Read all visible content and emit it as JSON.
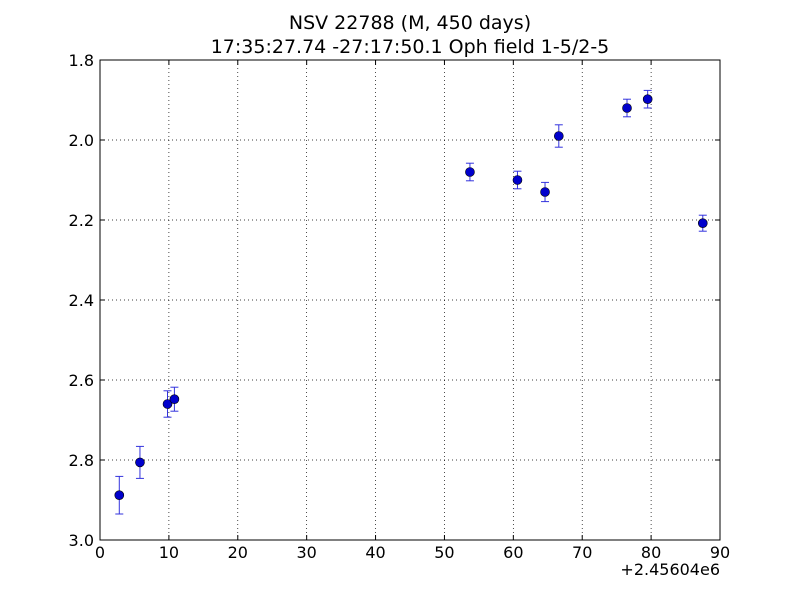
{
  "chart_data": {
    "type": "scatter",
    "title": "NSV 22788 (M, 450 days)",
    "subtitle": "17:35:27.74 -27:17:50.1 Oph field 1-5/2-5",
    "xlabel": "",
    "ylabel": "",
    "x_offset_label": "+2.45604e6",
    "xlim": [
      0,
      90
    ],
    "ylim": [
      3.0,
      1.8
    ],
    "y_inverted": true,
    "grid": true,
    "x_ticks": [
      "0",
      "10",
      "20",
      "30",
      "40",
      "50",
      "60",
      "70",
      "80",
      "90"
    ],
    "y_ticks": [
      "1.8",
      "2.0",
      "2.2",
      "2.4",
      "2.6",
      "2.8",
      "3.0"
    ],
    "marker_color": "#0000cc",
    "errorbar_color": "#3333dd",
    "points": [
      {
        "x": 2.8,
        "y": 2.888,
        "err": 0.047
      },
      {
        "x": 5.8,
        "y": 2.806,
        "err": 0.04
      },
      {
        "x": 9.8,
        "y": 2.66,
        "err": 0.033
      },
      {
        "x": 10.8,
        "y": 2.648,
        "err": 0.03
      },
      {
        "x": 53.7,
        "y": 2.08,
        "err": 0.022
      },
      {
        "x": 60.6,
        "y": 2.1,
        "err": 0.022
      },
      {
        "x": 64.6,
        "y": 2.13,
        "err": 0.024
      },
      {
        "x": 66.6,
        "y": 1.99,
        "err": 0.028
      },
      {
        "x": 76.5,
        "y": 1.92,
        "err": 0.022
      },
      {
        "x": 79.5,
        "y": 1.898,
        "err": 0.022
      },
      {
        "x": 87.5,
        "y": 2.208,
        "err": 0.02
      }
    ]
  }
}
